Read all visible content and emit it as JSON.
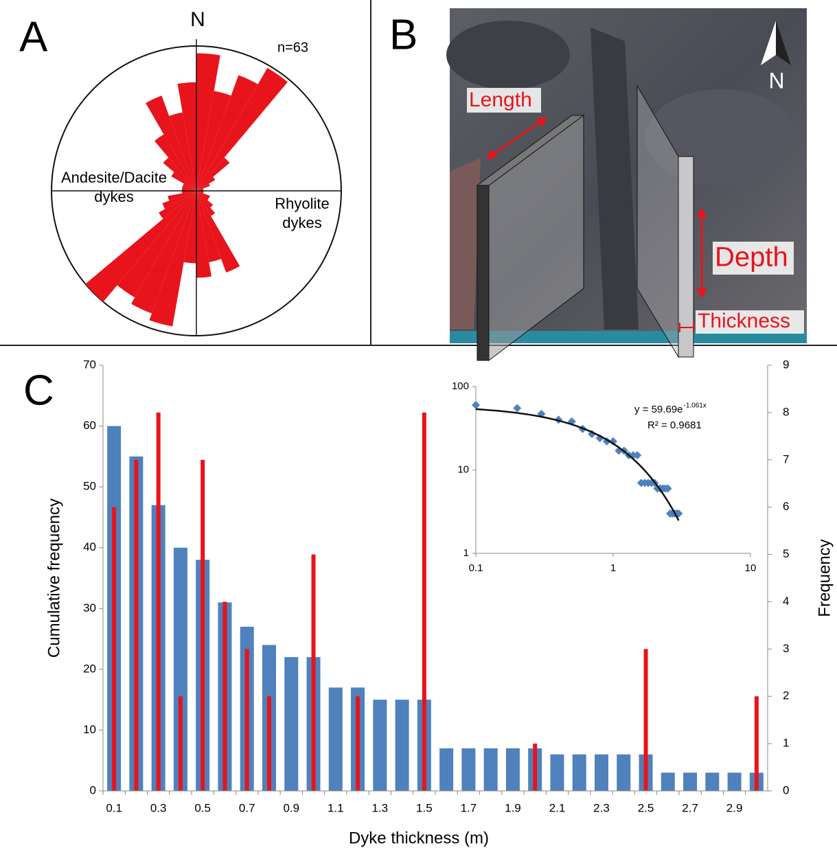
{
  "chart_data": [
    {
      "type": "rose",
      "panel_label": "A",
      "north_label": "N",
      "n_label": "n=63",
      "annotations": [
        [
          "Andesite/Dacite",
          "dykes"
        ],
        [
          "Rhyolite",
          "dykes"
        ]
      ],
      "directions": [
        5,
        15,
        25,
        35,
        45,
        55,
        65,
        75,
        85,
        95,
        105,
        115,
        125,
        135,
        145,
        155,
        165,
        175,
        185,
        195,
        205,
        215,
        225,
        235,
        245,
        255,
        265,
        275,
        285,
        295,
        305,
        315,
        325,
        335,
        345,
        355
      ],
      "values": [
        0.95,
        0.7,
        0.85,
        0.98,
        0.3,
        0.15,
        0.1,
        0.05,
        0.05,
        0.05,
        0.05,
        0.1,
        0.1,
        0.15,
        0.2,
        0.6,
        0.5,
        0.6,
        0.5,
        0.95,
        0.9,
        0.85,
        1.0,
        0.3,
        0.25,
        0.2,
        0.1,
        0.1,
        0.1,
        0.1,
        0.2,
        0.3,
        0.45,
        0.7,
        0.55,
        0.75
      ],
      "rlim": [
        0,
        1
      ],
      "color": "#e8141b"
    },
    {
      "type": "bar",
      "panel_label": "C",
      "x_label": "Dyke thickness (m)",
      "y_label": "Cumulative frequency",
      "y2_label": "Frequency",
      "categories": [
        "0.1",
        null,
        "0.3",
        null,
        "0.5",
        null,
        "0.7",
        null,
        "0.9",
        null,
        "1.1",
        null,
        "1.3",
        null,
        "1.5",
        null,
        "1.7",
        null,
        "1.9",
        null,
        "2.1",
        null,
        "2.3",
        null,
        "2.5",
        null,
        "2.7",
        null,
        "2.9",
        null
      ],
      "series": [
        {
          "color": "#4f81bd",
          "values": [
            60,
            55,
            47,
            40,
            38,
            31,
            27,
            24,
            22,
            22,
            17,
            17,
            15,
            15,
            15,
            7,
            7,
            7,
            7,
            7,
            6,
            6,
            6,
            6,
            6,
            3,
            3,
            3,
            3,
            3
          ]
        },
        {
          "color": "#e8141b",
          "axis": "y2",
          "values": [
            6,
            7,
            8,
            2,
            7,
            4,
            3,
            2,
            0,
            5,
            0,
            2,
            0,
            0,
            8,
            0,
            0,
            0,
            0,
            1,
            0,
            0,
            0,
            0,
            3,
            0,
            0,
            0,
            0,
            2
          ]
        }
      ],
      "ylim": [
        0,
        70
      ],
      "yticks": [
        0,
        10,
        20,
        30,
        40,
        50,
        60,
        70
      ],
      "y2lim": [
        0,
        9
      ],
      "y2ticks": [
        0,
        1,
        2,
        3,
        4,
        5,
        6,
        7,
        8,
        9
      ]
    },
    {
      "type": "scatter",
      "log_scale": true,
      "color": "#4f81bd",
      "x": [
        0.1,
        0.2,
        0.3,
        0.4,
        0.5,
        0.6,
        0.7,
        0.8,
        0.9,
        1.0,
        1.1,
        1.2,
        1.3,
        1.4,
        1.5,
        1.6,
        1.7,
        1.8,
        1.9,
        2.0,
        2.1,
        2.2,
        2.3,
        2.4,
        2.5,
        2.6,
        2.7,
        2.8,
        2.9,
        3.0
      ],
      "y": [
        60,
        55,
        47,
        40,
        38,
        31,
        27,
        24,
        22,
        22,
        17,
        17,
        15,
        15,
        15,
        7,
        7,
        7,
        7,
        7,
        6,
        6,
        6,
        6,
        6,
        3,
        3,
        3,
        3,
        3
      ],
      "xlim": [
        0.1,
        10
      ],
      "xticks": [
        0.1,
        1,
        10
      ],
      "ylim": [
        1,
        100
      ],
      "yticks": [
        1,
        10,
        100
      ],
      "trendline": {
        "a": 59.69,
        "b": -1.061,
        "equation": "y = 59.69e",
        "exponent": "-1.061x",
        "r_squared_label": "R² = 0.9681"
      }
    }
  ],
  "photo_panel": {
    "panel_label": "B",
    "length": "Length",
    "depth": "Depth",
    "thickness": "Thickness",
    "north": "N"
  }
}
